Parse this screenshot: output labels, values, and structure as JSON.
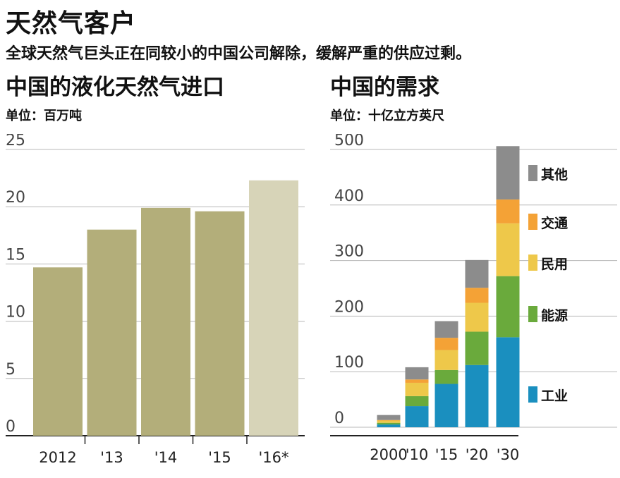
{
  "header": {
    "title": "天然气客户",
    "subtitle": "全球天然气巨头正在同较小的中国公司解除，缓解严重的供应过剩。"
  },
  "chart_data": [
    {
      "type": "bar",
      "title": "中国的液化天然气进口",
      "unit": "单位：百万吨",
      "categories": [
        "2012",
        "'13",
        "'14",
        "'15",
        "'16*"
      ],
      "values": [
        14.7,
        18.0,
        19.9,
        19.6,
        22.3
      ],
      "ylim": [
        0,
        25
      ],
      "yticks": [
        "0",
        "5",
        "10",
        "15",
        "20",
        "25"
      ],
      "colors": [
        "#b3ae7a",
        "#b3ae7a",
        "#b3ae7a",
        "#b3ae7a",
        "#d7d4b8"
      ],
      "grid": true
    },
    {
      "type": "bar",
      "stacked": true,
      "title": "中国的需求",
      "unit": "单位：十亿立方英尺",
      "categories": [
        "2000",
        "'10",
        "'15",
        "'20",
        "'30"
      ],
      "ylim": [
        0,
        500
      ],
      "yticks": [
        "0",
        "100",
        "200",
        "300",
        "400",
        "500"
      ],
      "legend_position": "right",
      "series": [
        {
          "name": "工业",
          "color": "#1a8fbf",
          "values": [
            5,
            38,
            78,
            112,
            162
          ]
        },
        {
          "name": "能源",
          "color": "#6aaa3c",
          "values": [
            3,
            18,
            25,
            60,
            110
          ]
        },
        {
          "name": "民用",
          "color": "#eec84a",
          "values": [
            4,
            24,
            36,
            52,
            95
          ]
        },
        {
          "name": "交通",
          "color": "#f4a236",
          "values": [
            1,
            6,
            22,
            27,
            43
          ]
        },
        {
          "name": "其他",
          "color": "#8c8c8c",
          "values": [
            9,
            22,
            30,
            50,
            96
          ]
        }
      ]
    }
  ]
}
